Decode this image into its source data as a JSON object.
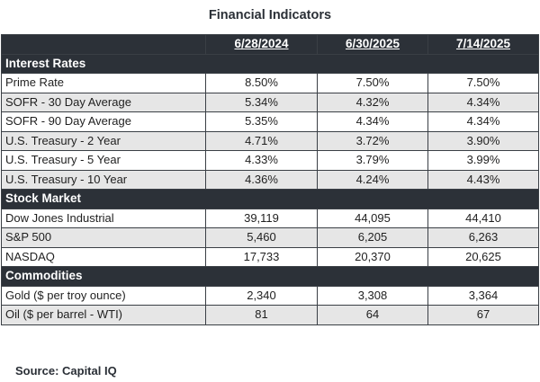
{
  "title": "Financial Indicators",
  "headers": [
    "",
    "6/28/2024",
    "6/30/2025",
    "7/14/2025"
  ],
  "sections": [
    {
      "name": "Interest Rates",
      "rows": [
        {
          "label": "Prime Rate",
          "values": [
            "8.50%",
            "7.50%",
            "7.50%"
          ]
        },
        {
          "label": "SOFR - 30 Day Average",
          "values": [
            "5.34%",
            "4.32%",
            "4.34%"
          ]
        },
        {
          "label": "SOFR - 90 Day Average",
          "values": [
            "5.35%",
            "4.34%",
            "4.34%"
          ]
        },
        {
          "label": "U.S. Treasury - 2 Year",
          "values": [
            "4.71%",
            "3.72%",
            "3.90%"
          ]
        },
        {
          "label": "U.S. Treasury - 5 Year",
          "values": [
            "4.33%",
            "3.79%",
            "3.99%"
          ]
        },
        {
          "label": "U.S. Treasury - 10 Year",
          "values": [
            "4.36%",
            "4.24%",
            "4.43%"
          ]
        }
      ]
    },
    {
      "name": "Stock Market",
      "rows": [
        {
          "label": "Dow Jones Industrial",
          "values": [
            "39,119",
            "44,095",
            "44,410"
          ]
        },
        {
          "label": "S&P 500",
          "values": [
            "5,460",
            "6,205",
            "6,263"
          ]
        },
        {
          "label": "NASDAQ",
          "values": [
            "17,733",
            "20,370",
            "20,625"
          ]
        }
      ]
    },
    {
      "name": "Commodities",
      "rows": [
        {
          "label": "Gold ($ per troy ounce)",
          "values": [
            "2,340",
            "3,308",
            "3,364"
          ]
        },
        {
          "label": "Oil ($ per barrel - WTI)",
          "values": [
            "81",
            "64",
            "67"
          ]
        }
      ]
    }
  ],
  "source": "Source: Capital IQ",
  "colors": {
    "header_bg": "#2c3138",
    "row_shade": "#e6e6e6"
  }
}
